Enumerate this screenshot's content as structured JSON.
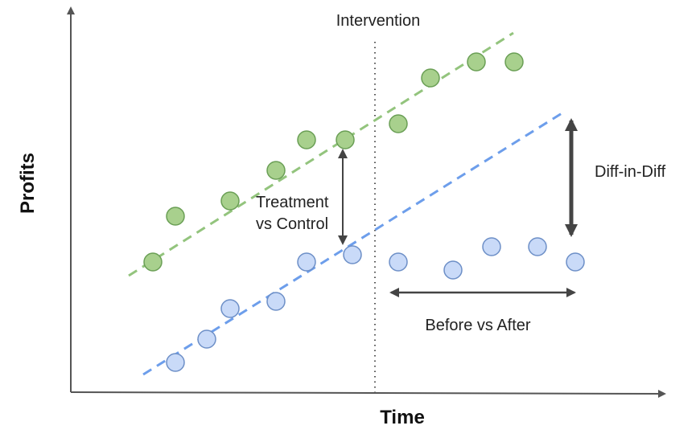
{
  "chart_data": {
    "type": "scatter",
    "xlabel": "Time",
    "ylabel": "Profits",
    "intervention_label": "Intervention",
    "annotations": {
      "treatment_vs_control_line1": "Treatment",
      "treatment_vs_control_line2": "vs Control",
      "diff_in_diff": "Diff-in-Diff",
      "before_vs_after": "Before vs After"
    },
    "grid": false,
    "legend": "none",
    "series": [
      {
        "color": "#a8d08d",
        "stroke": "#6a9f55",
        "trend_color": "#93c47d",
        "points": [
          [
            190,
            326
          ],
          [
            218,
            269
          ],
          [
            286,
            250
          ],
          [
            343,
            212
          ],
          [
            381,
            174
          ],
          [
            429,
            174
          ],
          [
            495,
            154
          ],
          [
            535,
            97
          ],
          [
            592,
            77
          ],
          [
            639,
            77
          ]
        ]
      },
      {
        "color": "#c9daf8",
        "stroke": "#6d8fc7",
        "trend_color": "#6d9eeb",
        "points": [
          [
            218,
            451
          ],
          [
            257,
            422
          ],
          [
            286,
            384
          ],
          [
            343,
            375
          ],
          [
            381,
            326
          ],
          [
            438,
            317
          ],
          [
            495,
            326
          ],
          [
            563,
            336
          ],
          [
            611,
            307
          ],
          [
            668,
            307
          ],
          [
            715,
            326
          ]
        ]
      }
    ],
    "colors": {
      "axis": "#555555",
      "intervention_line": "#555555",
      "arrow": "#444444"
    }
  }
}
